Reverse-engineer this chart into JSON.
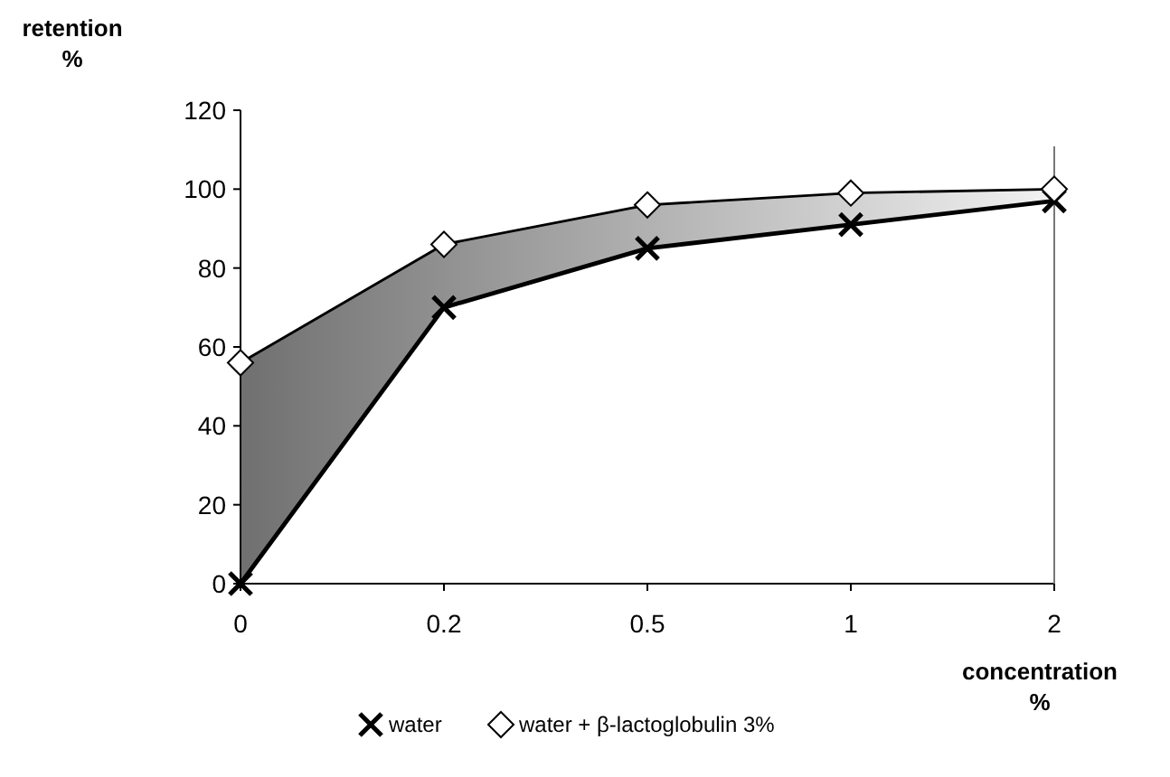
{
  "chart_data": {
    "type": "line",
    "ylabel": "retention\n%",
    "xlabel": "concentration\n%",
    "categories": [
      "0",
      "0.2",
      "0.5",
      "1",
      "2"
    ],
    "ylim": [
      0,
      120
    ],
    "yticks": [
      0,
      20,
      40,
      60,
      80,
      100,
      120
    ],
    "grid": false,
    "legend": "bottom",
    "series": [
      {
        "name": "water",
        "color": "#000000",
        "marker": "cross",
        "values": [
          0,
          70,
          85,
          91,
          97
        ]
      },
      {
        "name": "water + β-lactoglobulin 3%",
        "color": "#000000",
        "marker": "diamond",
        "values": [
          56,
          86,
          96,
          99,
          100
        ],
        "lower": [
          0,
          70,
          85,
          91,
          97
        ],
        "upper": [
          56,
          86,
          96,
          99,
          100
        ]
      }
    ]
  }
}
